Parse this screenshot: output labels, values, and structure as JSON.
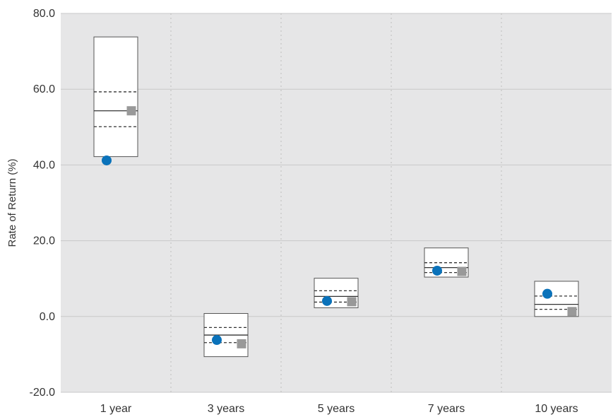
{
  "chart_data": {
    "type": "box",
    "title": "",
    "xlabel": "",
    "ylabel": "Rate of Return (%)",
    "ylim": [
      -20,
      80
    ],
    "yticks": [
      "80.0",
      "60.0",
      "40.0",
      "20.0",
      "0.0",
      "-20.0"
    ],
    "grid": true,
    "categories": [
      "1 year",
      "3 years",
      "5 years",
      "7 years",
      "10 years"
    ],
    "boxes": [
      {
        "top": 73.8,
        "upper_quartile": 59.3,
        "median": 54.3,
        "lower_quartile": 50.1,
        "bottom": 42.2
      },
      {
        "top": 0.8,
        "upper_quartile": -2.9,
        "median": -4.9,
        "lower_quartile": -6.9,
        "bottom": -10.6
      },
      {
        "top": 10.1,
        "upper_quartile": 6.8,
        "median": 5.3,
        "lower_quartile": 3.8,
        "bottom": 2.3
      },
      {
        "top": 18.1,
        "upper_quartile": 14.2,
        "median": 12.9,
        "lower_quartile": 11.6,
        "bottom": 10.4
      },
      {
        "top": 9.3,
        "upper_quartile": 5.4,
        "median": 3.2,
        "lower_quartile": 1.9,
        "bottom": 0.0
      }
    ],
    "series": [
      {
        "marker": "circle",
        "color": "#0a72ba",
        "values": [
          41.2,
          -6.2,
          4.1,
          12.1,
          6.0
        ]
      },
      {
        "marker": "square",
        "color": "#999999",
        "values": [
          54.3,
          -7.2,
          3.9,
          11.9,
          1.3
        ]
      }
    ],
    "colors": {
      "plot_background": "#e6e6e7",
      "gridline": "#c8c8c8",
      "box_fill": "#ffffff",
      "box_stroke": "#555555"
    }
  }
}
